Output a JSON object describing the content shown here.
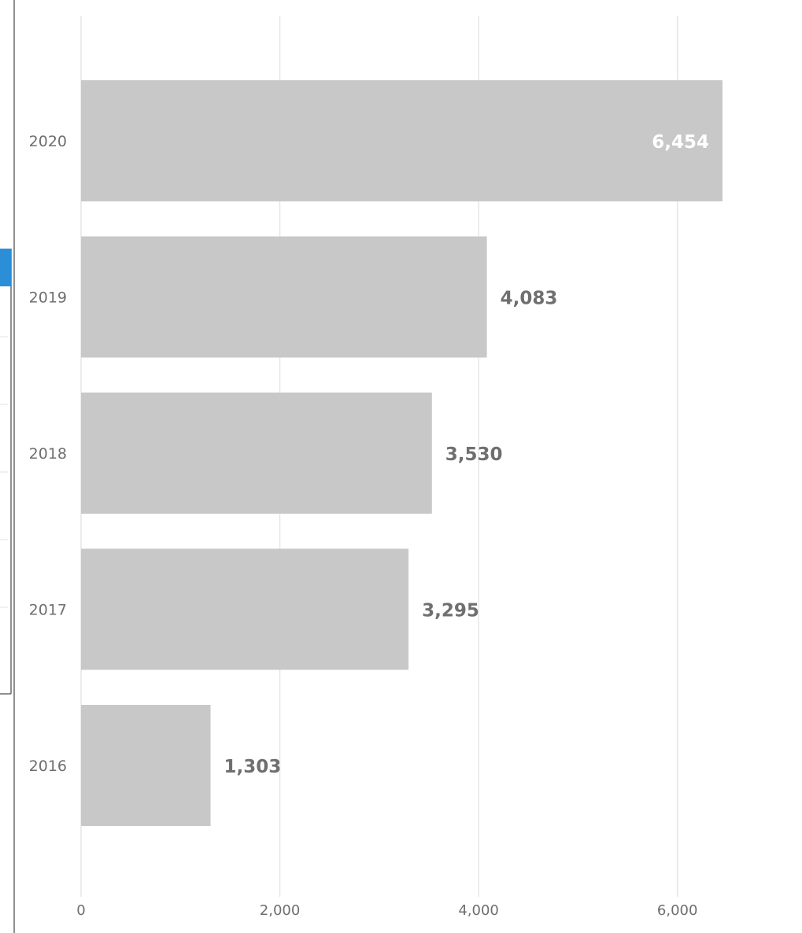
{
  "chart_data": {
    "type": "bar",
    "orientation": "horizontal",
    "title": "",
    "xlabel": "",
    "ylabel": "",
    "categories": [
      "2020",
      "2019",
      "2018",
      "2017",
      "2016"
    ],
    "values": [
      6454,
      4083,
      3530,
      3295,
      1303
    ],
    "data_labels": [
      "6,454",
      "4,083",
      "3,530",
      "3,295",
      "1,303"
    ],
    "x_ticks": [
      0,
      2000,
      4000,
      6000
    ],
    "x_tick_labels": [
      "0",
      "2,000",
      "4,000",
      "6,000"
    ],
    "xlim": [
      0,
      6454
    ],
    "grid": true,
    "legend": "none",
    "colors": {
      "bar": "#c8c8c8",
      "grid": "#e6e6e6",
      "text": "#6e6e6e",
      "inside_label": "#ffffff",
      "accent_tab": "#2b8ed6"
    }
  }
}
